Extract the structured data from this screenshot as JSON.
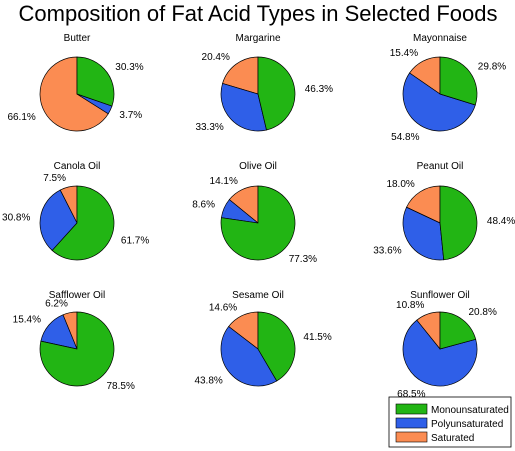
{
  "chart_data": {
    "type": "pie",
    "title": "Composition of Fat Acid Types in Selected Foods",
    "series_names": [
      "Monounsaturated",
      "Polyunsaturated",
      "Saturated"
    ],
    "colors": {
      "Monounsaturated": "#22b514",
      "Polyunsaturated": "#2f5fe8",
      "Saturated": "#fb8c52"
    },
    "legend_position": "bottom-right",
    "panels": [
      {
        "name": "Butter",
        "values": [
          30.3,
          3.7,
          66.1
        ],
        "labels": [
          "30.3%",
          "3.7%",
          "66.1%"
        ]
      },
      {
        "name": "Margarine",
        "values": [
          46.3,
          33.3,
          20.4
        ],
        "labels": [
          "46.3%",
          "33.3%",
          "20.4%"
        ]
      },
      {
        "name": "Mayonnaise",
        "values": [
          29.8,
          54.8,
          15.4
        ],
        "labels": [
          "29.8%",
          "54.8%",
          "15.4%"
        ]
      },
      {
        "name": "Canola Oil",
        "values": [
          61.7,
          30.8,
          7.5
        ],
        "labels": [
          "61.7%",
          "30.8%",
          "7.5%"
        ]
      },
      {
        "name": "Olive Oil",
        "values": [
          77.3,
          8.6,
          14.1
        ],
        "labels": [
          "77.3%",
          "8.6%",
          "14.1%"
        ]
      },
      {
        "name": "Peanut Oil",
        "values": [
          48.4,
          33.6,
          18.0
        ],
        "labels": [
          "48.4%",
          "33.6%",
          "18.0%"
        ]
      },
      {
        "name": "Safflower Oil",
        "values": [
          78.5,
          15.4,
          6.2
        ],
        "labels": [
          "78.5%",
          "15.4%",
          "6.2%"
        ]
      },
      {
        "name": "Sesame Oil",
        "values": [
          41.5,
          43.8,
          14.6
        ],
        "labels": [
          "41.5%",
          "43.8%",
          "14.6%"
        ]
      },
      {
        "name": "Sunflower Oil",
        "values": [
          20.8,
          68.5,
          10.8
        ],
        "labels": [
          "20.8%",
          "68.5%",
          "10.8%"
        ]
      }
    ]
  }
}
